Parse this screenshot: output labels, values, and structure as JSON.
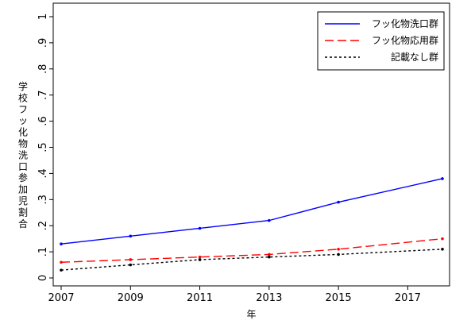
{
  "chart_data": {
    "type": "line",
    "title": "",
    "xlabel": "年",
    "ylabel": "学校フッ化物洗口参加児割合",
    "x": [
      2007,
      2009,
      2011,
      2013,
      2015,
      2018
    ],
    "xticks": [
      "2007",
      "2009",
      "2011",
      "2013",
      "2015",
      "2017"
    ],
    "yticks": [
      "0",
      ".1",
      ".2",
      ".3",
      ".4",
      ".5",
      ".6",
      ".7",
      ".8",
      ".9",
      "1"
    ],
    "xlim": [
      2007,
      2018
    ],
    "ylim": [
      0,
      1
    ],
    "grid": false,
    "legend_position": "top-right",
    "series": [
      {
        "name": "フッ化物洗口群",
        "values": [
          0.13,
          0.16,
          0.19,
          0.22,
          0.29,
          0.38
        ],
        "color": "#0000ff",
        "dash": "solid"
      },
      {
        "name": "フッ化物応用群",
        "values": [
          0.06,
          0.07,
          0.08,
          0.09,
          0.11,
          0.15
        ],
        "color": "#ff0000",
        "dash": "dashed"
      },
      {
        "name": "記載なし群",
        "values": [
          0.03,
          0.05,
          0.07,
          0.08,
          0.09,
          0.11
        ],
        "color": "#000000",
        "dash": "dotted"
      }
    ]
  }
}
